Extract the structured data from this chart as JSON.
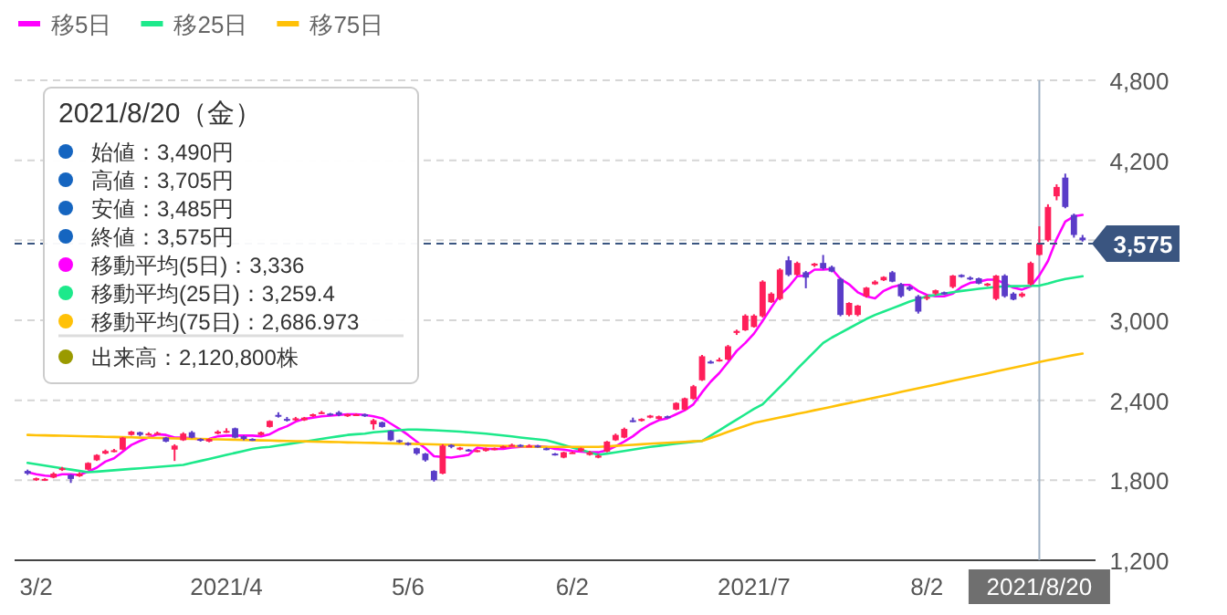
{
  "chart_data": {
    "type": "candlestick",
    "categories": [
      null,
      "3/2",
      null,
      null,
      null,
      null,
      null,
      null,
      null,
      null,
      null,
      null,
      null,
      null,
      null,
      null,
      null,
      null,
      null,
      null,
      null,
      null,
      null,
      "2021/4",
      null,
      null,
      null,
      null,
      null,
      null,
      null,
      null,
      null,
      null,
      null,
      null,
      null,
      null,
      null,
      null,
      null,
      null,
      null,
      null,
      "5/6",
      null,
      null,
      null,
      null,
      null,
      null,
      null,
      null,
      null,
      null,
      null,
      null,
      null,
      null,
      null,
      null,
      null,
      null,
      "6/2",
      null,
      null,
      null,
      null,
      null,
      null,
      null,
      null,
      null,
      null,
      null,
      null,
      null,
      null,
      null,
      null,
      null,
      null,
      null,
      null,
      "2021/7",
      null,
      null,
      null,
      null,
      null,
      null,
      null,
      null,
      null,
      null,
      null,
      null,
      null,
      null,
      null,
      null,
      null,
      null,
      null,
      "8/2",
      null,
      null,
      null,
      null,
      null,
      null,
      null,
      null,
      null,
      null,
      null,
      null,
      "2021/8/20",
      null,
      null,
      null,
      null,
      null
    ],
    "ohlc": [
      [
        1870,
        1880,
        1840,
        1850
      ],
      [
        1800,
        1820,
        1795,
        1815
      ],
      [
        1805,
        1815,
        1795,
        1810
      ],
      [
        1820,
        1860,
        1815,
        1850
      ],
      [
        1880,
        1900,
        1870,
        1890
      ],
      [
        1840,
        1845,
        1780,
        1810
      ],
      [
        1830,
        1860,
        1825,
        1850
      ],
      [
        1880,
        1935,
        1875,
        1930
      ],
      [
        1950,
        1995,
        1945,
        1990
      ],
      [
        2000,
        2030,
        1995,
        2020
      ],
      [
        2020,
        2035,
        2010,
        2025
      ],
      [
        2030,
        2125,
        2025,
        2120
      ],
      [
        2140,
        2170,
        2135,
        2165
      ],
      [
        2160,
        2165,
        2130,
        2140
      ],
      [
        2140,
        2160,
        2135,
        2150
      ],
      [
        2150,
        2165,
        2145,
        2155
      ],
      [
        2120,
        2125,
        2085,
        2090
      ],
      [
        2030,
        2070,
        1945,
        2060
      ],
      [
        2100,
        2160,
        2095,
        2150
      ],
      [
        2160,
        2170,
        2115,
        2120
      ],
      [
        2110,
        2115,
        2090,
        2100
      ],
      [
        2090,
        2115,
        2085,
        2110
      ],
      [
        2150,
        2175,
        2145,
        2165
      ],
      [
        2160,
        2190,
        2155,
        2170
      ],
      [
        2190,
        2195,
        2115,
        2120
      ],
      [
        2130,
        2135,
        2100,
        2110
      ],
      [
        2110,
        2115,
        2095,
        2100
      ],
      [
        2140,
        2165,
        2135,
        2160
      ],
      [
        2200,
        2250,
        2195,
        2245
      ],
      [
        2290,
        2310,
        2270,
        2280
      ],
      [
        2260,
        2275,
        2240,
        2250
      ],
      [
        2250,
        2275,
        2245,
        2265
      ],
      [
        2250,
        2275,
        2245,
        2270
      ],
      [
        2280,
        2300,
        2275,
        2295
      ],
      [
        2300,
        2320,
        2295,
        2310
      ],
      [
        2300,
        2305,
        2285,
        2290
      ],
      [
        2310,
        2320,
        2280,
        2290
      ],
      [
        2280,
        2300,
        2275,
        2295
      ],
      [
        2290,
        2300,
        2285,
        2295
      ],
      [
        2295,
        2300,
        2275,
        2280
      ],
      [
        2220,
        2260,
        2180,
        2250
      ],
      [
        2235,
        2240,
        2195,
        2200
      ],
      [
        2170,
        2175,
        2095,
        2100
      ],
      [
        2100,
        2105,
        2080,
        2090
      ],
      [
        2080,
        2085,
        2060,
        2065
      ],
      [
        2040,
        2045,
        1990,
        2000
      ],
      [
        2000,
        2005,
        1940,
        1950
      ],
      [
        1870,
        1875,
        1790,
        1800
      ],
      [
        1850,
        2070,
        1845,
        2060
      ],
      [
        2065,
        2070,
        2040,
        2050
      ],
      [
        2030,
        2050,
        2025,
        2045
      ],
      [
        2030,
        2035,
        2015,
        2020
      ],
      [
        2020,
        2030,
        2010,
        2025
      ],
      [
        2020,
        2045,
        2015,
        2040
      ],
      [
        2030,
        2045,
        2025,
        2040
      ],
      [
        2045,
        2060,
        2040,
        2055
      ],
      [
        2060,
        2075,
        2055,
        2065
      ],
      [
        2065,
        2070,
        2050,
        2055
      ],
      [
        2055,
        2070,
        2050,
        2060
      ],
      [
        2060,
        2065,
        2045,
        2050
      ],
      [
        2040,
        2045,
        2025,
        2030
      ],
      [
        2000,
        2005,
        1985,
        1990
      ],
      [
        1970,
        2015,
        1965,
        2010
      ],
      [
        2005,
        2015,
        2000,
        2010
      ],
      [
        2020,
        2045,
        2015,
        2040
      ],
      [
        1990,
        2020,
        1985,
        2010
      ],
      [
        1970,
        1995,
        1965,
        1985
      ],
      [
        2015,
        2095,
        2010,
        2090
      ],
      [
        2100,
        2150,
        2095,
        2140
      ],
      [
        2120,
        2195,
        2115,
        2185
      ],
      [
        2250,
        2270,
        2235,
        2240
      ],
      [
        2245,
        2265,
        2240,
        2260
      ],
      [
        2270,
        2290,
        2265,
        2285
      ],
      [
        2260,
        2285,
        2255,
        2280
      ],
      [
        2280,
        2285,
        2265,
        2270
      ],
      [
        2330,
        2385,
        2325,
        2380
      ],
      [
        2330,
        2420,
        2325,
        2415
      ],
      [
        2410,
        2515,
        2405,
        2505
      ],
      [
        2550,
        2740,
        2545,
        2730
      ],
      [
        2690,
        2700,
        2675,
        2680
      ],
      [
        2700,
        2720,
        2690,
        2705
      ],
      [
        2705,
        2815,
        2700,
        2805
      ],
      [
        2905,
        2930,
        2890,
        2920
      ],
      [
        2925,
        3045,
        2920,
        3035
      ],
      [
        2950,
        3045,
        2945,
        3035
      ],
      [
        3030,
        3300,
        3020,
        3290
      ],
      [
        3135,
        3210,
        3130,
        3200
      ],
      [
        3160,
        3390,
        3150,
        3380
      ],
      [
        3450,
        3480,
        3330,
        3340
      ],
      [
        3340,
        3440,
        3335,
        3430
      ],
      [
        3360,
        3370,
        3240,
        3320
      ],
      [
        3410,
        3430,
        3400,
        3425
      ],
      [
        3430,
        3490,
        3380,
        3390
      ],
      [
        3400,
        3410,
        3360,
        3365
      ],
      [
        3310,
        3320,
        3030,
        3040
      ],
      [
        3040,
        3135,
        3030,
        3130
      ],
      [
        3040,
        3115,
        3030,
        3110
      ],
      [
        3180,
        3250,
        3170,
        3245
      ],
      [
        3270,
        3300,
        3265,
        3290
      ],
      [
        3300,
        3330,
        3295,
        3325
      ],
      [
        3360,
        3370,
        3285,
        3290
      ],
      [
        3270,
        3280,
        3170,
        3180
      ],
      [
        3250,
        3260,
        3220,
        3230
      ],
      [
        3180,
        3190,
        3050,
        3065
      ],
      [
        3170,
        3190,
        3150,
        3175
      ],
      [
        3200,
        3230,
        3190,
        3225
      ],
      [
        3210,
        3215,
        3190,
        3195
      ],
      [
        3250,
        3340,
        3240,
        3335
      ],
      [
        3340,
        3345,
        3320,
        3325
      ],
      [
        3320,
        3330,
        3300,
        3310
      ],
      [
        3315,
        3320,
        3270,
        3275
      ],
      [
        3260,
        3280,
        3255,
        3275
      ],
      [
        3160,
        3340,
        3150,
        3335
      ],
      [
        3335,
        3345,
        3170,
        3180
      ],
      [
        3200,
        3210,
        3150,
        3155
      ],
      [
        3180,
        3210,
        3170,
        3200
      ],
      [
        3270,
        3440,
        3260,
        3430
      ],
      [
        3490,
        3705,
        3485,
        3575
      ],
      [
        3600,
        3870,
        3590,
        3850
      ],
      [
        3930,
        4020,
        3900,
        4000
      ],
      [
        4070,
        4100,
        3840,
        3850
      ],
      [
        3790,
        3800,
        3620,
        3640
      ],
      [
        3620,
        3640,
        3590,
        3600
      ]
    ],
    "colors": [
      "#5a3cc8",
      "#ff1f5a",
      "#ff1f5a",
      "#ff1f5a",
      "#ff1f5a",
      "#5a3cc8",
      "#ff1f5a",
      "#ff1f5a",
      "#ff1f5a",
      "#ff1f5a",
      "#ff1f5a",
      "#ff1f5a",
      "#ff1f5a",
      "#5a3cc8",
      "#ff1f5a",
      "#ff1f5a",
      "#5a3cc8",
      "#ff1f5a",
      "#ff1f5a",
      "#5a3cc8",
      "#5a3cc8",
      "#ff1f5a",
      "#ff1f5a",
      "#ff1f5a",
      "#5a3cc8",
      "#5a3cc8",
      "#5a3cc8",
      "#ff1f5a",
      "#ff1f5a",
      "#5a3cc8",
      "#5a3cc8",
      "#ff1f5a",
      "#ff1f5a",
      "#ff1f5a",
      "#ff1f5a",
      "#5a3cc8",
      "#5a3cc8",
      "#ff1f5a",
      "#ff1f5a",
      "#5a3cc8",
      "#ff1f5a",
      "#5a3cc8",
      "#5a3cc8",
      "#5a3cc8",
      "#5a3cc8",
      "#5a3cc8",
      "#5a3cc8",
      "#5a3cc8",
      "#ff1f5a",
      "#5a3cc8",
      "#ff1f5a",
      "#5a3cc8",
      "#ff1f5a",
      "#ff1f5a",
      "#ff1f5a",
      "#ff1f5a",
      "#ff1f5a",
      "#5a3cc8",
      "#ff1f5a",
      "#5a3cc8",
      "#5a3cc8",
      "#5a3cc8",
      "#ff1f5a",
      "#ff1f5a",
      "#ff1f5a",
      "#ff1f5a",
      "#ff1f5a",
      "#ff1f5a",
      "#ff1f5a",
      "#ff1f5a",
      "#5a3cc8",
      "#ff1f5a",
      "#ff1f5a",
      "#ff1f5a",
      "#5a3cc8",
      "#ff1f5a",
      "#ff1f5a",
      "#ff1f5a",
      "#ff1f5a",
      "#5a3cc8",
      "#ff1f5a",
      "#ff1f5a",
      "#ff1f5a",
      "#ff1f5a",
      "#ff1f5a",
      "#ff1f5a",
      "#ff1f5a",
      "#ff1f5a",
      "#5a3cc8",
      "#ff1f5a",
      "#5a3cc8",
      "#ff1f5a",
      "#5a3cc8",
      "#5a3cc8",
      "#5a3cc8",
      "#ff1f5a",
      "#ff1f5a",
      "#ff1f5a",
      "#ff1f5a",
      "#ff1f5a",
      "#5a3cc8",
      "#5a3cc8",
      "#5a3cc8",
      "#5a3cc8",
      "#ff1f5a",
      "#ff1f5a",
      "#5a3cc8",
      "#ff1f5a",
      "#5a3cc8",
      "#5a3cc8",
      "#5a3cc8",
      "#ff1f5a",
      "#ff1f5a",
      "#5a3cc8",
      "#5a3cc8",
      "#ff1f5a",
      "#ff1f5a",
      "#ff1f5a",
      "#ff1f5a",
      "#ff1f5a",
      "#5a3cc8",
      "#5a3cc8",
      "#5a3cc8"
    ],
    "series": [
      {
        "type": "line",
        "name": "移5日",
        "color": "#ff00ff",
        "values": [
          1860,
          1845,
          1835,
          1830,
          1845,
          1845,
          1840,
          1865,
          1895,
          1940,
          1965,
          2015,
          2065,
          2095,
          2120,
          2145,
          2140,
          2120,
          2120,
          2115,
          2105,
          2110,
          2130,
          2135,
          2135,
          2135,
          2135,
          2130,
          2145,
          2180,
          2205,
          2240,
          2260,
          2270,
          2280,
          2285,
          2290,
          2295,
          2295,
          2290,
          2280,
          2265,
          2225,
          2185,
          2140,
          2090,
          2040,
          1980,
          1975,
          1970,
          1980,
          1990,
          2045,
          2035,
          2035,
          2035,
          2045,
          2050,
          2055,
          2055,
          2050,
          2035,
          2030,
          2020,
          2015,
          2010,
          2010,
          2025,
          2055,
          2090,
          2130,
          2180,
          2220,
          2250,
          2265,
          2295,
          2325,
          2370,
          2460,
          2540,
          2605,
          2685,
          2770,
          2830,
          2900,
          2995,
          3095,
          3190,
          3250,
          3330,
          3335,
          3380,
          3380,
          3385,
          3310,
          3270,
          3210,
          3180,
          3165,
          3220,
          3250,
          3265,
          3265,
          3220,
          3190,
          3180,
          3180,
          3200,
          3250,
          3280,
          3290,
          3305,
          3305,
          3275,
          3245,
          3230,
          3255,
          3336,
          3445,
          3610,
          3740,
          3780,
          3790
        ]
      },
      {
        "type": "line",
        "name": "移25日",
        "color": "#1de98b",
        "values": [
          1930,
          1920,
          1910,
          1900,
          1890,
          1880,
          1870,
          1860,
          1865,
          1870,
          1875,
          1880,
          1885,
          1890,
          1895,
          1900,
          1905,
          1910,
          1915,
          1930,
          1945,
          1960,
          1975,
          1990,
          2005,
          2020,
          2035,
          2045,
          2050,
          2060,
          2070,
          2080,
          2090,
          2100,
          2110,
          2120,
          2130,
          2140,
          2145,
          2150,
          2160,
          2165,
          2170,
          2175,
          2180,
          2180,
          2178,
          2175,
          2172,
          2168,
          2165,
          2160,
          2155,
          2150,
          2143,
          2136,
          2129,
          2121,
          2114,
          2107,
          2100,
          2082,
          2064,
          2046,
          2028,
          2010,
          1990,
          2000,
          2010,
          2020,
          2030,
          2040,
          2050,
          2058,
          2066,
          2074,
          2082,
          2089,
          2095,
          2135,
          2175,
          2215,
          2255,
          2295,
          2335,
          2370,
          2435,
          2500,
          2565,
          2635,
          2700,
          2765,
          2830,
          2870,
          2905,
          2940,
          2975,
          3010,
          3040,
          3065,
          3090,
          3115,
          3140,
          3160,
          3180,
          3190,
          3200,
          3210,
          3220,
          3228,
          3236,
          3243,
          3250,
          3255,
          3256,
          3257,
          3258,
          3259.4,
          3275,
          3295,
          3310,
          3320,
          3330
        ]
      },
      {
        "type": "line",
        "name": "移75日",
        "color": "#ffc107",
        "values": [
          2140,
          2138,
          2137,
          2135,
          2134,
          2132,
          2131,
          2129,
          2128,
          2126,
          2125,
          2123,
          2122,
          2120,
          2119,
          2117,
          2116,
          2114,
          2113,
          2111,
          2110,
          2108,
          2107,
          2105,
          2104,
          2102,
          2101,
          2099,
          2098,
          2096,
          2095,
          2093,
          2092,
          2090,
          2089,
          2087,
          2086,
          2084,
          2083,
          2081,
          2080,
          2078,
          2077,
          2075,
          2074,
          2072,
          2071,
          2069,
          2068,
          2066,
          2065,
          2063,
          2062,
          2060,
          2059,
          2057,
          2056,
          2054,
          2053,
          2051,
          2050,
          2050,
          2050,
          2050,
          2050,
          2050,
          2050,
          2054,
          2058,
          2062,
          2066,
          2070,
          2074,
          2078,
          2081,
          2085,
          2088,
          2092,
          2095,
          2117,
          2140,
          2163,
          2185,
          2208,
          2230,
          2244,
          2257,
          2271,
          2284,
          2298,
          2311,
          2325,
          2338,
          2352,
          2366,
          2379,
          2393,
          2406,
          2420,
          2434,
          2448,
          2462,
          2476,
          2490,
          2504,
          2518,
          2532,
          2546,
          2560,
          2574,
          2588,
          2602,
          2616,
          2630,
          2644,
          2658,
          2672,
          2686.973,
          2700,
          2713,
          2726,
          2739,
          2750
        ]
      }
    ],
    "ylim": [
      1200,
      4800
    ],
    "yticks": [
      {
        "value": 1200,
        "label": "1,200"
      },
      {
        "value": 1800,
        "label": "1,800"
      },
      {
        "value": 2400,
        "label": "2,400"
      },
      {
        "value": 3000,
        "label": "3,000"
      },
      {
        "value": 3600,
        "label": null
      },
      {
        "value": 4200,
        "label": "4,200"
      },
      {
        "value": 4800,
        "label": "4,800"
      }
    ],
    "grid": "y",
    "legend": "top left",
    "line_style": "solid",
    "marker": "none",
    "ref_lines": [
      {
        "axis": "y",
        "value": 3575,
        "label": "3,575",
        "line_style": "dashed",
        "color": "#3a5580"
      },
      {
        "axis": "x",
        "value": "2021/8/20",
        "line_style": "solid",
        "color": "#9fb1c4"
      }
    ],
    "annotations": [
      "2021/8/20（金）",
      "始値：3,490円",
      "高値：3,705円",
      "安値：3,485円",
      "終値：3,575円",
      "移動平均(5日)：3,336",
      "移動平均(25日)：3,259.4",
      "移動平均(75日)：2,686.973",
      "出来高：2,120,800株"
    ]
  }
}
